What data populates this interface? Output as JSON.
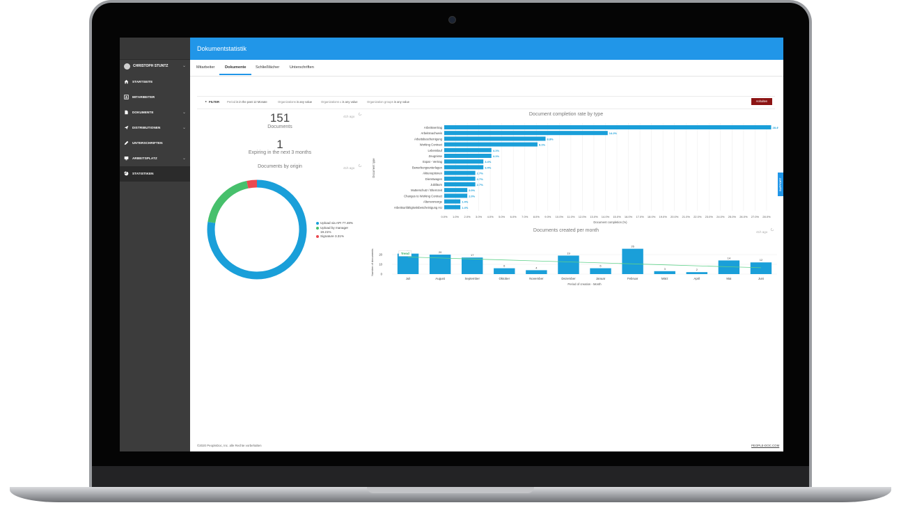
{
  "app": {
    "title": "Dokumentstatistik"
  },
  "sidebar": {
    "user": "CHRISTOPH STUNTZ",
    "items": [
      {
        "label": "STARTSEITE",
        "icon": "home-icon"
      },
      {
        "label": "MITARBEITER",
        "icon": "person-card-icon"
      },
      {
        "label": "DOKUMENTE",
        "icon": "document-icon"
      },
      {
        "label": "DISTRIBUTIONEN",
        "icon": "send-icon"
      },
      {
        "label": "UNTERSCHRIFTEN",
        "icon": "pen-icon"
      },
      {
        "label": "ARBEITSPLATZ",
        "icon": "monitor-icon"
      },
      {
        "label": "STATISTIKEN",
        "icon": "chart-pie-icon"
      }
    ],
    "active": "STATISTIKEN"
  },
  "tabs": [
    "Mitarbeiter",
    "Dokumente",
    "Schließfächer",
    "Unterschriften"
  ],
  "active_tab": "Dokumente",
  "filter": {
    "label": "FILTER",
    "period_prefix": "Period",
    "period_value": "is in the past 12 Monate",
    "org_prefix": "Organizations",
    "org_value": "is any value",
    "org2_prefix": "Organizations ≤",
    "org2_value": "is any value",
    "group_prefix": "Organization groups",
    "group_value": "is any value",
    "export_label": "Anhalten"
  },
  "stats": {
    "documents_count": "151",
    "documents_label": "Documents",
    "documents_ago": "41h ago",
    "expiring_count": "1",
    "expiring_label": "Expiring in the next 3 months"
  },
  "origin": {
    "title": "Documents by origin",
    "ago": "41h ago",
    "legend": [
      {
        "label": "Upload via API 77.48%",
        "color": "#1a9fd9"
      },
      {
        "label": "Upload by manager",
        "label2": "19.21%",
        "color": "#47c06c"
      },
      {
        "label": "Signature 3.31%",
        "color": "#ea4950"
      }
    ]
  },
  "completion": {
    "title": "Document completion rate by type",
    "ylabel": "Document type",
    "xlabel": "Document completion (%)",
    "bar_color": "#1a9fd9"
  },
  "monthly": {
    "title": "Documents created per month",
    "ago": "41h ago",
    "ylabel": "Number of documents",
    "xlabel": "Period of creation - Month",
    "trend_label": "Trend",
    "bar_color": "#1a9fd9",
    "trend_color": "#5fd18a"
  },
  "footer": {
    "copyright": "©2020 PeopleDoc, Inc. alle Rechte vorbehalten",
    "link": "PEOPLE-DOC.COM"
  },
  "support_label": "SUPPORT",
  "chart_data": [
    {
      "type": "pie",
      "title": "Documents by origin",
      "categories": [
        "Upload via API",
        "Upload by manager",
        "Signature"
      ],
      "values": [
        77.48,
        19.21,
        3.31
      ]
    },
    {
      "type": "bar",
      "title": "Document completion rate by type",
      "xlabel": "Document completion (%)",
      "ylabel": "Document type",
      "xlim": [
        0,
        29
      ],
      "ticks": [
        "0.0%",
        "1.0%",
        "2.0%",
        "3.0%",
        "4.0%",
        "5.0%",
        "6.0%",
        "7.0%",
        "8.0%",
        "9.0%",
        "10.0%",
        "11.0%",
        "12.0%",
        "13.0%",
        "14.0%",
        "15.0%",
        "16.0%",
        "17.0%",
        "18.0%",
        "19.0%",
        "20.0%",
        "21.0%",
        "22.0%",
        "23.0%",
        "24.0%",
        "25.0%",
        "26.0%",
        "27.0%",
        "28.0%"
      ],
      "categories": [
        "Arbeitsvertrag",
        "Arbeitsnachweis",
        "Arbeitsbescheinigung",
        "Working Contract",
        "Lebenslauf",
        "Zeugnisse",
        "Expat - Vertrag",
        "Bewerbungsunterlagen",
        "Aktienoptionen",
        "Dienstwagen",
        "Jubiläum",
        "Mutterschutz / Elternzeit",
        "Changes to Working Contract",
        "Altersvorsorge",
        "Arbeitsunfähigkeitsbescheinigung AU"
      ],
      "values": [
        28.4,
        14.2,
        8.8,
        8.1,
        4.1,
        4.1,
        3.4,
        3.4,
        2.7,
        2.7,
        2.7,
        2.0,
        2.0,
        1.4,
        1.4
      ],
      "labels": [
        "28.4%",
        "14.2%",
        "8.8%",
        "8.1%",
        "4.1%",
        "4.1%",
        "3.4%",
        "3.4%",
        "2.7%",
        "2.7%",
        "2.7%",
        "2.0%",
        "2.0%",
        "1.4%",
        "1.4%"
      ]
    },
    {
      "type": "bar",
      "title": "Documents created per month",
      "xlabel": "Period of creation - Month",
      "ylabel": "Number of documents",
      "ylim": [
        0,
        28
      ],
      "yticks": [
        "0",
        "10",
        "20"
      ],
      "categories": [
        "Juli",
        "August",
        "September",
        "Oktober",
        "November",
        "Dezember",
        "Januar",
        "Februar",
        "März",
        "April",
        "Mai",
        "Juni"
      ],
      "values": [
        21,
        20,
        17,
        6,
        4,
        19,
        6,
        26,
        3,
        2,
        14,
        12
      ],
      "series": [
        {
          "name": "Trend",
          "values": [
            17.5,
            16.5,
            15.5,
            14.5,
            13.5,
            12.5,
            11.5,
            10.5,
            9.5,
            8.5,
            7.5,
            6.5
          ]
        }
      ]
    }
  ]
}
